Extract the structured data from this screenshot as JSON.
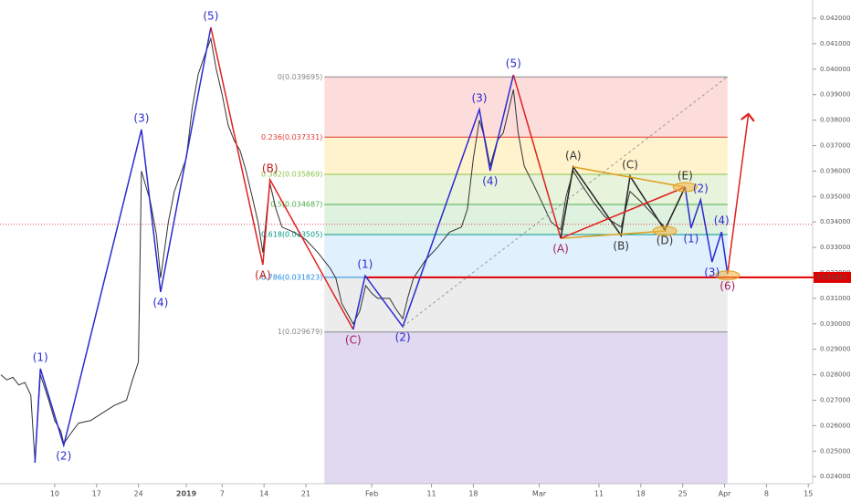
{
  "chart_data": {
    "type": "line",
    "color": "#333333",
    "xlim": [
      -31.15,
      104.73
    ],
    "ylim": [
      0.02372,
      0.042717
    ],
    "xticks": [
      {
        "value": -22,
        "label": "10"
      },
      {
        "value": -15,
        "label": "17"
      },
      {
        "value": -8,
        "label": "24"
      },
      {
        "value": 0,
        "label": "2019"
      },
      {
        "value": 6,
        "label": "7"
      },
      {
        "value": 13,
        "label": "14"
      },
      {
        "value": 20,
        "label": "21"
      },
      {
        "value": 31,
        "label": "Feb"
      },
      {
        "value": 41,
        "label": "11"
      },
      {
        "value": 48,
        "label": "18"
      },
      {
        "value": 59,
        "label": "Mar"
      },
      {
        "value": 69,
        "label": "11"
      },
      {
        "value": 76,
        "label": "18"
      },
      {
        "value": 83,
        "label": "25"
      },
      {
        "value": 90,
        "label": "Apr"
      },
      {
        "value": 97,
        "label": "8"
      },
      {
        "value": 104,
        "label": "15"
      }
    ],
    "yticks": [
      {
        "value": 0.024,
        "label": "0.024000"
      },
      {
        "value": 0.025,
        "label": "0.025000"
      },
      {
        "value": 0.026,
        "label": "0.026000"
      },
      {
        "value": 0.027,
        "label": "0.027000"
      },
      {
        "value": 0.028,
        "label": "0.028000"
      },
      {
        "value": 0.029,
        "label": "0.029000"
      },
      {
        "value": 0.03,
        "label": "0.030000"
      },
      {
        "value": 0.031,
        "label": "0.031000"
      },
      {
        "value": 0.032,
        "label": "0.032000"
      },
      {
        "value": 0.033,
        "label": "0.033000"
      },
      {
        "value": 0.034,
        "label": "0.034000"
      },
      {
        "value": 0.035,
        "label": "0.035000"
      },
      {
        "value": 0.036,
        "label": "0.036000"
      },
      {
        "value": 0.037,
        "label": "0.037000"
      },
      {
        "value": 0.038,
        "label": "0.038000"
      },
      {
        "value": 0.039,
        "label": "0.039000"
      },
      {
        "value": 0.04,
        "label": "0.040000"
      },
      {
        "value": 0.041,
        "label": "0.041000"
      },
      {
        "value": 0.042,
        "label": "0.042000"
      }
    ],
    "x": [
      -31,
      -30,
      -29,
      -28,
      -27,
      -26,
      -25.3,
      -24.4,
      -23,
      -22,
      -21,
      -20.5,
      -19,
      -18,
      -16,
      -14,
      -12,
      -10,
      -9,
      -8,
      -7.5,
      -6,
      -5,
      -4.3,
      -3,
      -2,
      0,
      1,
      2,
      3,
      4.1,
      5,
      6,
      7,
      8,
      9,
      10,
      11,
      12,
      12.8,
      13.5,
      14,
      15,
      16,
      18,
      20,
      22,
      24,
      25,
      26,
      27.9,
      29,
      30,
      31,
      32,
      34,
      35,
      36.2,
      37,
      38,
      40,
      42,
      44,
      46,
      47,
      48,
      49,
      50,
      50.8,
      52,
      53,
      54,
      54.7,
      55.5,
      56.5,
      58,
      59,
      60,
      61,
      62.6,
      63.5,
      64.7,
      66,
      68,
      70,
      72.7,
      74.2,
      76,
      78,
      80
    ],
    "values": [
      0.028,
      0.0278,
      0.0279,
      0.0276,
      0.0277,
      0.0272,
      0.0246,
      0.028,
      0.027,
      0.0262,
      0.0258,
      0.0253,
      0.0258,
      0.0261,
      0.0262,
      0.0265,
      0.0268,
      0.027,
      0.0278,
      0.0285,
      0.036,
      0.0348,
      0.0335,
      0.0318,
      0.034,
      0.0352,
      0.0365,
      0.0385,
      0.0398,
      0.0405,
      0.0412,
      0.04,
      0.039,
      0.0378,
      0.0372,
      0.0368,
      0.036,
      0.035,
      0.034,
      0.0328,
      0.0345,
      0.0355,
      0.0345,
      0.0338,
      0.0336,
      0.0333,
      0.0328,
      0.0322,
      0.0318,
      0.0308,
      0.03,
      0.0305,
      0.0315,
      0.0312,
      0.031,
      0.031,
      0.0306,
      0.0302,
      0.031,
      0.0318,
      0.0325,
      0.033,
      0.0336,
      0.0338,
      0.0345,
      0.0365,
      0.038,
      0.0372,
      0.0362,
      0.0372,
      0.0375,
      0.0385,
      0.0392,
      0.0375,
      0.0362,
      0.0355,
      0.035,
      0.0345,
      0.034,
      0.0337,
      0.035,
      0.036,
      0.0355,
      0.0348,
      0.0342,
      0.0338,
      0.0352,
      0.0348,
      0.0343,
      0.0338
    ],
    "last_price": 0.03391,
    "fib": {
      "x": [
        23.1,
        90.5
      ],
      "levels": [
        {
          "price": 0.039695,
          "label": "0(0.039695)",
          "color": "#888888",
          "fill": "rgba(239,83,80,0.2)"
        },
        {
          "price": 0.037331,
          "label": "0.236(0.037331)",
          "color": "#e53935",
          "fill": "rgba(255,193,7,0.2)"
        },
        {
          "price": 0.035869,
          "label": "0.382(0.035869)",
          "color": "#8bc34a",
          "fill": "rgba(139,195,74,0.2)"
        },
        {
          "price": 0.034687,
          "label": "0.5(0.034687)",
          "color": "#4caf50",
          "fill": "rgba(76,175,80,0.18)"
        },
        {
          "price": 0.033505,
          "label": "0.618(0.033505)",
          "color": "#009688",
          "fill": "rgba(100,181,246,0.2)"
        },
        {
          "price": 0.031823,
          "label": "0.786(0.031823)",
          "color": "#1e88e5",
          "fill": "rgba(158,158,158,0.2)"
        },
        {
          "price": 0.029679,
          "label": "1(0.029679)",
          "color": "#888888",
          "fill": "rgba(103,58,183,0.2)"
        }
      ]
    },
    "level_line": {
      "x": 29.9,
      "value": 0.031823,
      "label": "0.031823",
      "color": "#e00000"
    },
    "drawings": [
      {
        "color": "#2a2ad0",
        "x": [
          -25.3,
          -24.4,
          -20.5,
          -7.5,
          -4.3,
          4.1
        ],
        "values": [
          0.02454,
          0.02824,
          0.02523,
          0.03763,
          0.03125,
          0.04164
        ]
      },
      {
        "color": "#e02020",
        "x": [
          4.1,
          12.8,
          14.0,
          27.9
        ],
        "values": [
          0.04164,
          0.03232,
          0.03566,
          0.02978
        ]
      },
      {
        "color": "#2a2ad0",
        "x": [
          27.9,
          29.9,
          36.2,
          49.0,
          50.8,
          54.7
        ],
        "values": [
          0.02978,
          0.03189,
          0.02989,
          0.03842,
          0.03601,
          0.03978
        ]
      },
      {
        "color": "#e02020",
        "x": [
          54.7,
          62.6
        ],
        "values": [
          0.03978,
          0.03336
        ]
      },
      {
        "color": "#222222",
        "x": [
          62.6,
          64.7,
          72.7,
          74.2,
          80.0,
          83.4
        ],
        "values": [
          0.03336,
          0.03616,
          0.03347,
          0.0358,
          0.03368,
          0.03537
        ]
      },
      {
        "color": "#e0a020",
        "x": [
          64.7,
          83.4
        ],
        "values": [
          0.03616,
          0.03537
        ]
      },
      {
        "color": "#e0a020",
        "x": [
          62.6,
          80.3
        ],
        "values": [
          0.03336,
          0.03365
        ]
      },
      {
        "color": "#e02020",
        "x": [
          62.6,
          83.4
        ],
        "values": [
          0.03336,
          0.03537
        ]
      },
      {
        "color": "#2a2ad0",
        "x": [
          83.4,
          84.4,
          86.0,
          87.9,
          89.5,
          90.5
        ],
        "values": [
          0.03537,
          0.03376,
          0.03487,
          0.03243,
          0.03361,
          0.03196
        ]
      },
      {
        "color": "#e02020",
        "x": [
          90.5,
          94.0
        ],
        "values": [
          0.03196,
          0.03824
        ]
      },
      {
        "color": "#999999",
        "x": [
          36.2,
          90.5
        ],
        "values": [
          0.02989,
          0.03971
        ]
      }
    ],
    "highlights": {
      "x": [
        83.4,
        80.0,
        90.5
      ],
      "values": [
        0.03537,
        0.03365,
        0.0319
      ]
    },
    "waves": [
      {
        "label": "(1)",
        "x": -24.4,
        "value": 0.02824,
        "color": "#2a2ad0",
        "pos": "above"
      },
      {
        "label": "(2)",
        "x": -20.5,
        "value": 0.02523,
        "color": "#2a2ad0",
        "pos": "below"
      },
      {
        "label": "(3)",
        "x": -7.5,
        "value": 0.03763,
        "color": "#2a2ad0",
        "pos": "above"
      },
      {
        "label": "(4)",
        "x": -4.3,
        "value": 0.03125,
        "color": "#2a2ad0",
        "pos": "below"
      },
      {
        "label": "(5)",
        "x": 4.1,
        "value": 0.04164,
        "color": "#2a2ad0",
        "pos": "above"
      },
      {
        "label": "(A)",
        "x": 12.8,
        "value": 0.03232,
        "color": "#c02020",
        "pos": "below"
      },
      {
        "label": "(B)",
        "x": 14.0,
        "value": 0.03566,
        "color": "#c02020",
        "pos": "above"
      },
      {
        "label": "(C)",
        "x": 27.9,
        "value": 0.02978,
        "color": "#a02060",
        "pos": "below"
      },
      {
        "label": "(1)",
        "x": 29.9,
        "value": 0.03189,
        "color": "#2a2ad0",
        "pos": "above"
      },
      {
        "label": "(2)",
        "x": 36.2,
        "value": 0.02989,
        "color": "#2a2ad0",
        "pos": "below"
      },
      {
        "label": "(3)",
        "x": 49.0,
        "value": 0.03842,
        "color": "#2a2ad0",
        "pos": "above"
      },
      {
        "label": "(4)",
        "x": 50.8,
        "value": 0.03601,
        "color": "#2a2ad0",
        "pos": "below"
      },
      {
        "label": "(5)",
        "x": 54.7,
        "value": 0.03978,
        "color": "#2a2ad0",
        "pos": "above"
      },
      {
        "label": "(A)",
        "x": 62.6,
        "value": 0.03336,
        "color": "#a02060",
        "pos": "below"
      },
      {
        "label": "(A)",
        "x": 64.7,
        "value": 0.03616,
        "color": "#333333",
        "pos": "above"
      },
      {
        "label": "(B)",
        "x": 72.7,
        "value": 0.03347,
        "color": "#333333",
        "pos": "below"
      },
      {
        "label": "(C)",
        "x": 74.2,
        "value": 0.0358,
        "color": "#333333",
        "pos": "above"
      },
      {
        "label": "(D)",
        "x": 80.0,
        "value": 0.03368,
        "color": "#333333",
        "pos": "below"
      },
      {
        "label": "(E)",
        "x": 83.4,
        "value": 0.03537,
        "color": "#333333",
        "pos": "above"
      },
      {
        "label": "(1)",
        "x": 84.4,
        "value": 0.03376,
        "color": "#2a2ad0",
        "pos": "below"
      },
      {
        "label": "(2)",
        "x": 86.0,
        "value": 0.03487,
        "color": "#2a2ad0",
        "pos": "above"
      },
      {
        "label": "(3)",
        "x": 87.9,
        "value": 0.03243,
        "color": "#2a2ad0",
        "pos": "below"
      },
      {
        "label": "(4)",
        "x": 89.5,
        "value": 0.03361,
        "color": "#2a2ad0",
        "pos": "above"
      },
      {
        "label": "(6)",
        "x": 90.5,
        "value": 0.0319,
        "color": "#a02060",
        "pos": "below"
      }
    ]
  }
}
